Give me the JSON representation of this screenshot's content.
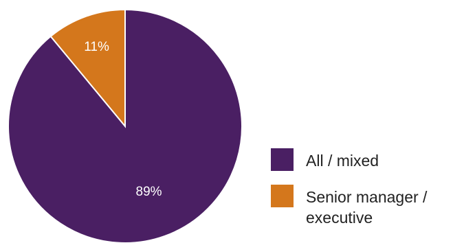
{
  "chart_data": {
    "type": "pie",
    "title": "",
    "slices": [
      {
        "label": "Senior manager / executive",
        "value": 11,
        "display": "11%",
        "color": "#d4771c"
      },
      {
        "label": "All / mixed",
        "value": 89,
        "display": "89%",
        "color": "#4a1f63"
      }
    ],
    "start_angle_deg": 0,
    "direction": "counterclockwise",
    "legend_position": "right",
    "legend": [
      {
        "label": "All / mixed",
        "color": "#4a1f63"
      },
      {
        "label": "Senior manager / executive",
        "color": "#d4771c"
      }
    ]
  }
}
